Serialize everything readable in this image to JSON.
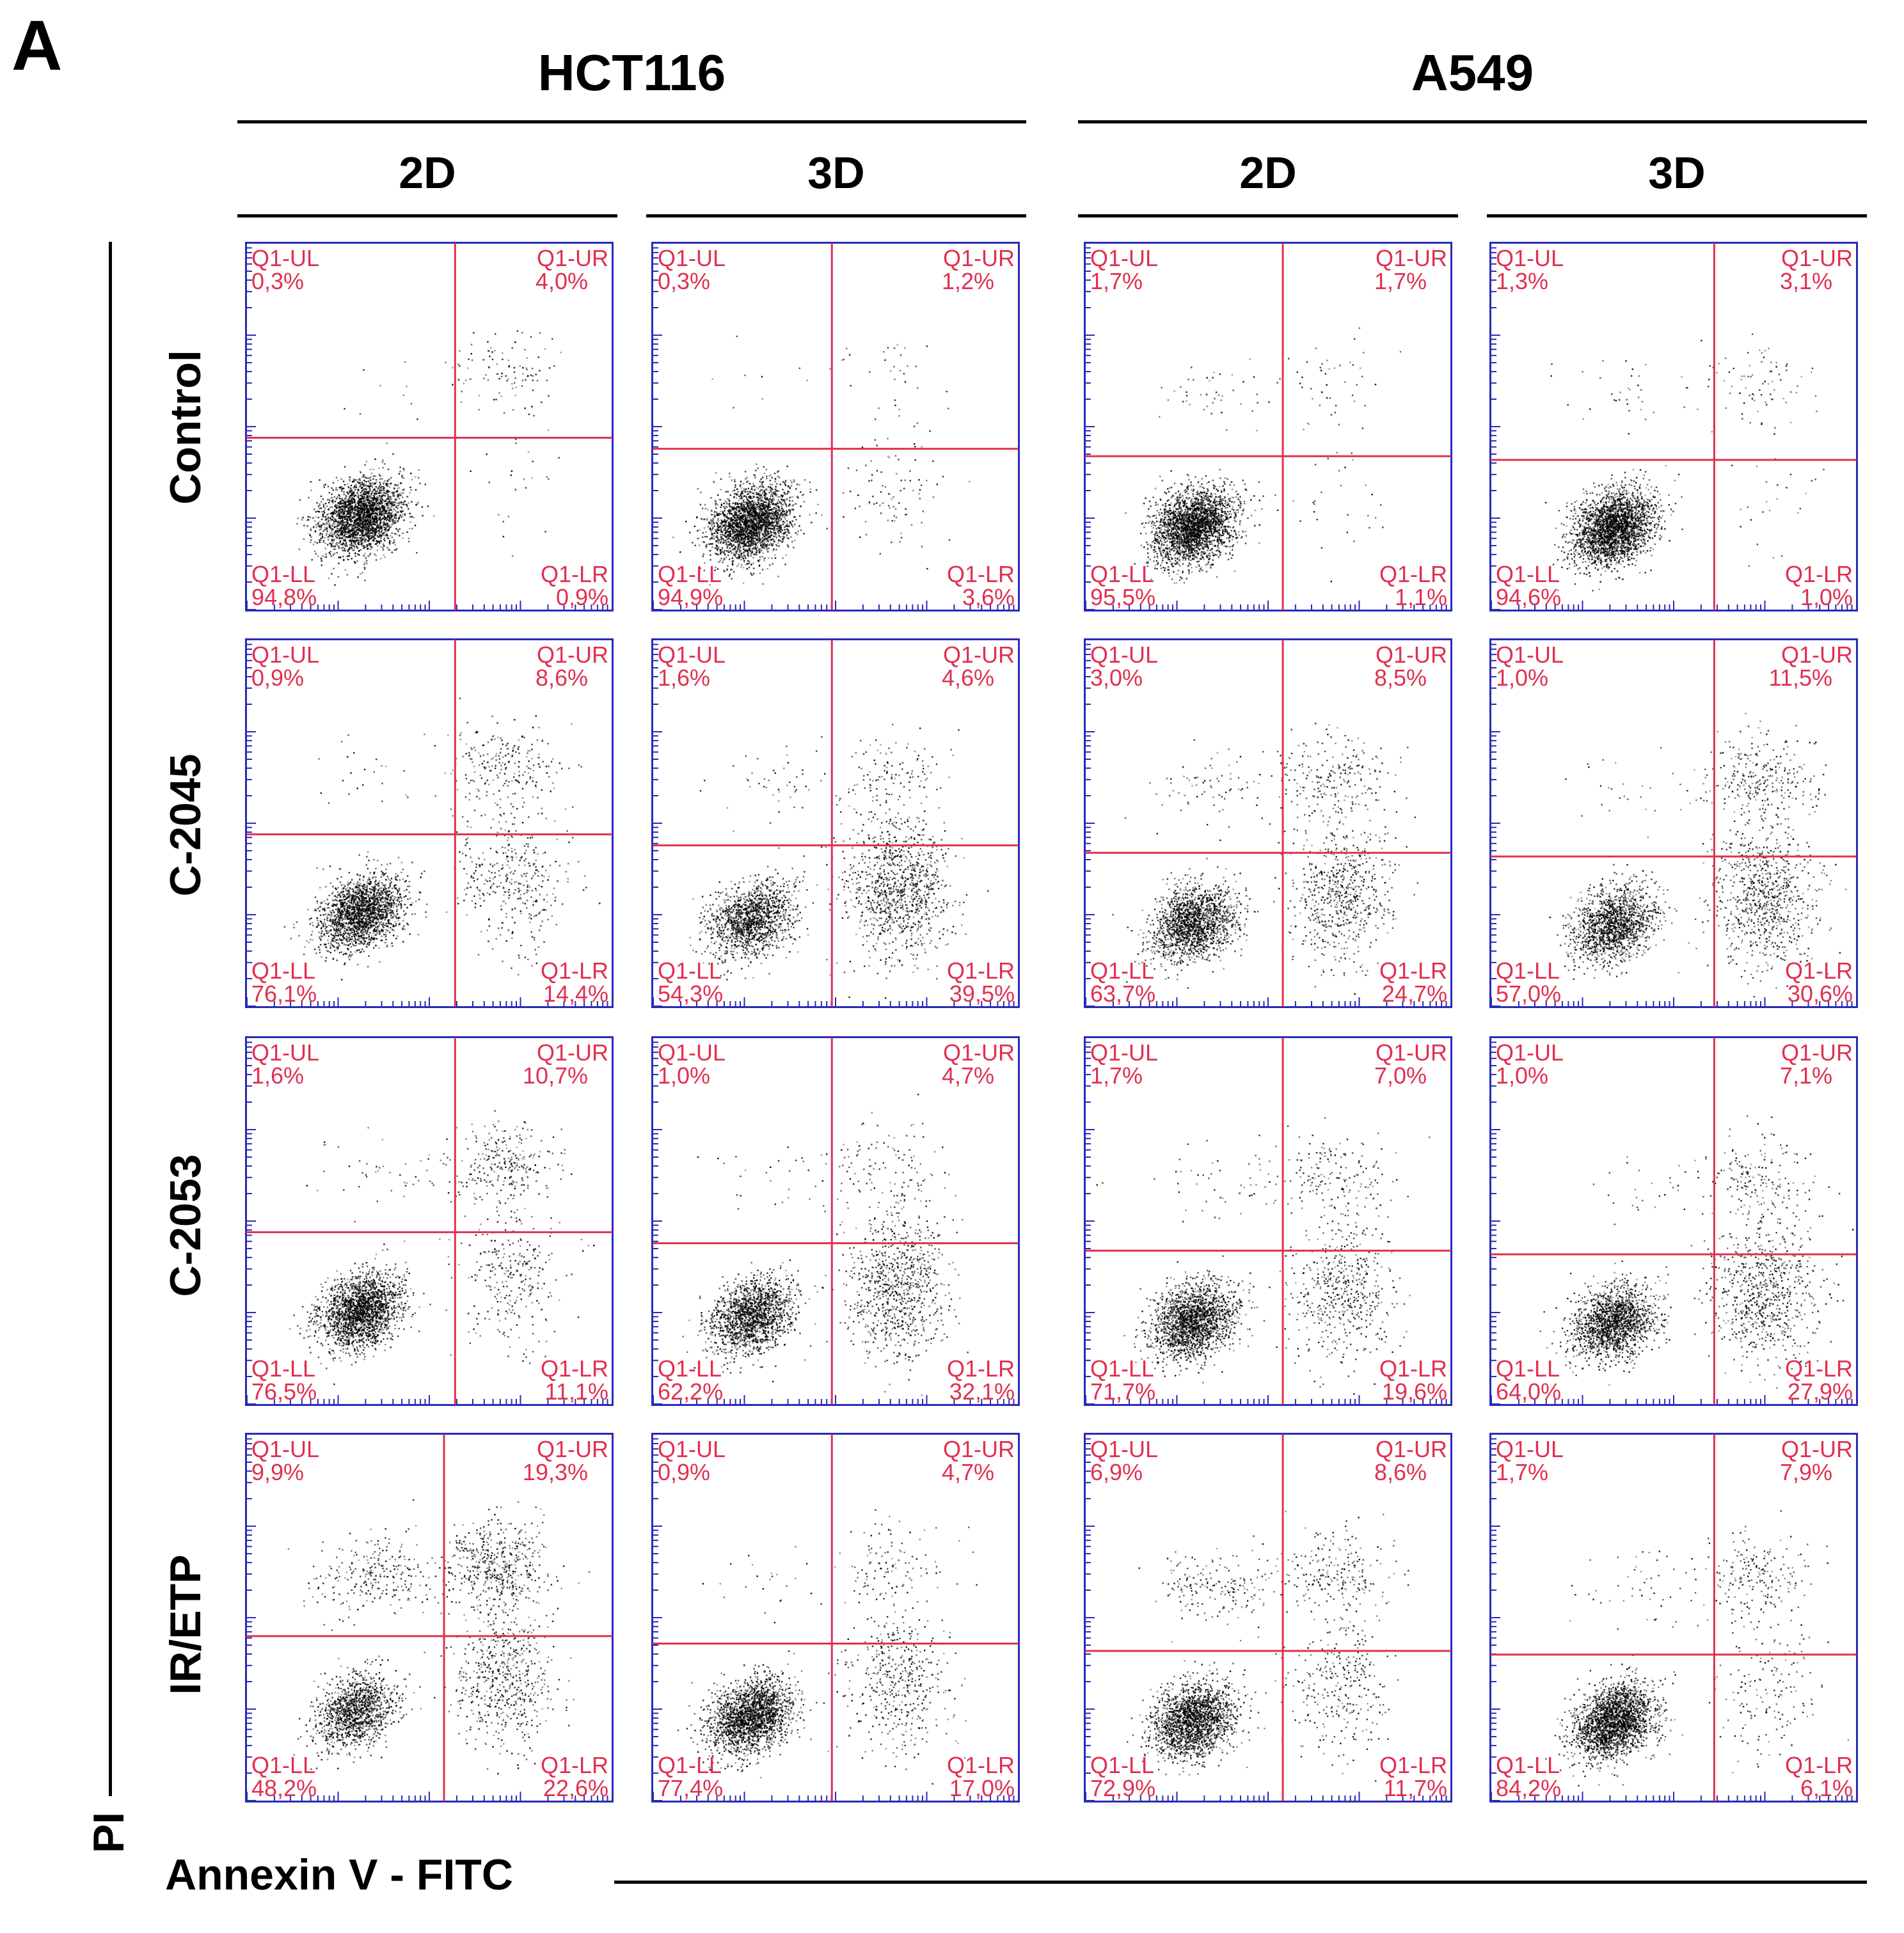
{
  "panel_label": "A",
  "cell_lines": [
    "HCT116",
    "A549"
  ],
  "conditions": [
    "2D",
    "3D",
    "2D",
    "3D"
  ],
  "treatments": [
    "Control",
    "C-2045",
    "C-2053",
    "IR/ETP"
  ],
  "x_axis_label": "Annexin V - FITC",
  "y_axis_label": "PI",
  "quadrant_names": {
    "ul": "Q1-UL",
    "ur": "Q1-UR",
    "ll": "Q1-LL",
    "lr": "Q1-LR"
  },
  "colors": {
    "quadrant": "#e03050",
    "frame": "#2a2ab8",
    "dots": "#000000"
  },
  "chart_data": [
    {
      "type": "scatter",
      "cell_line": "HCT116",
      "condition": "2D",
      "treatment": "Control",
      "ul": "0,3%",
      "ur": "4,0%",
      "ll": "94,8%",
      "lr": "0,9%",
      "gate_x": 0.57,
      "gate_y": 0.53
    },
    {
      "type": "scatter",
      "cell_line": "HCT116",
      "condition": "3D",
      "treatment": "Control",
      "ul": "0,3%",
      "ur": "1,2%",
      "ll": "94,9%",
      "lr": "3,6%",
      "gate_x": 0.49,
      "gate_y": 0.56
    },
    {
      "type": "scatter",
      "cell_line": "A549",
      "condition": "2D",
      "treatment": "Control",
      "ul": "1,7%",
      "ur": "1,7%",
      "ll": "95,5%",
      "lr": "1,1%",
      "gate_x": 0.54,
      "gate_y": 0.58
    },
    {
      "type": "scatter",
      "cell_line": "A549",
      "condition": "3D",
      "treatment": "Control",
      "ul": "1,3%",
      "ur": "3,1%",
      "ll": "94,6%",
      "lr": "1,0%",
      "gate_x": 0.61,
      "gate_y": 0.59
    },
    {
      "type": "scatter",
      "cell_line": "HCT116",
      "condition": "2D",
      "treatment": "C-2045",
      "ul": "0,9%",
      "ur": "8,6%",
      "ll": "76,1%",
      "lr": "14,4%",
      "gate_x": 0.57,
      "gate_y": 0.53
    },
    {
      "type": "scatter",
      "cell_line": "HCT116",
      "condition": "3D",
      "treatment": "C-2045",
      "ul": "1,6%",
      "ur": "4,6%",
      "ll": "54,3%",
      "lr": "39,5%",
      "gate_x": 0.49,
      "gate_y": 0.56
    },
    {
      "type": "scatter",
      "cell_line": "A549",
      "condition": "2D",
      "treatment": "C-2045",
      "ul": "3,0%",
      "ur": "8,5%",
      "ll": "63,7%",
      "lr": "24,7%",
      "gate_x": 0.54,
      "gate_y": 0.58
    },
    {
      "type": "scatter",
      "cell_line": "A549",
      "condition": "3D",
      "treatment": "C-2045",
      "ul": "1,0%",
      "ur": "11,5%",
      "ll": "57,0%",
      "lr": "30,6%",
      "gate_x": 0.61,
      "gate_y": 0.59
    },
    {
      "type": "scatter",
      "cell_line": "HCT116",
      "condition": "2D",
      "treatment": "C-2053",
      "ul": "1,6%",
      "ur": "10,7%",
      "ll": "76,5%",
      "lr": "11,1%",
      "gate_x": 0.57,
      "gate_y": 0.53
    },
    {
      "type": "scatter",
      "cell_line": "HCT116",
      "condition": "3D",
      "treatment": "C-2053",
      "ul": "1,0%",
      "ur": "4,7%",
      "ll": "62,2%",
      "lr": "32,1%",
      "gate_x": 0.49,
      "gate_y": 0.56
    },
    {
      "type": "scatter",
      "cell_line": "A549",
      "condition": "2D",
      "treatment": "C-2053",
      "ul": "1,7%",
      "ur": "7,0%",
      "ll": "71,7%",
      "lr": "19,6%",
      "gate_x": 0.54,
      "gate_y": 0.58
    },
    {
      "type": "scatter",
      "cell_line": "A549",
      "condition": "3D",
      "treatment": "C-2053",
      "ul": "1,0%",
      "ur": "7,1%",
      "ll": "64,0%",
      "lr": "27,9%",
      "gate_x": 0.61,
      "gate_y": 0.59
    },
    {
      "type": "scatter",
      "cell_line": "HCT116",
      "condition": "2D",
      "treatment": "IR/ETP",
      "ul": "9,9%",
      "ur": "19,3%",
      "ll": "48,2%",
      "lr": "22,6%",
      "gate_x": 0.54,
      "gate_y": 0.55
    },
    {
      "type": "scatter",
      "cell_line": "HCT116",
      "condition": "3D",
      "treatment": "IR/ETP",
      "ul": "0,9%",
      "ur": "4,7%",
      "ll": "77,4%",
      "lr": "17,0%",
      "gate_x": 0.49,
      "gate_y": 0.57
    },
    {
      "type": "scatter",
      "cell_line": "A549",
      "condition": "2D",
      "treatment": "IR/ETP",
      "ul": "6,9%",
      "ur": "8,6%",
      "ll": "72,9%",
      "lr": "11,7%",
      "gate_x": 0.54,
      "gate_y": 0.59
    },
    {
      "type": "scatter",
      "cell_line": "A549",
      "condition": "3D",
      "treatment": "IR/ETP",
      "ul": "1,7%",
      "ur": "7,9%",
      "ll": "84,2%",
      "lr": "6,1%",
      "gate_x": 0.61,
      "gate_y": 0.6
    }
  ]
}
